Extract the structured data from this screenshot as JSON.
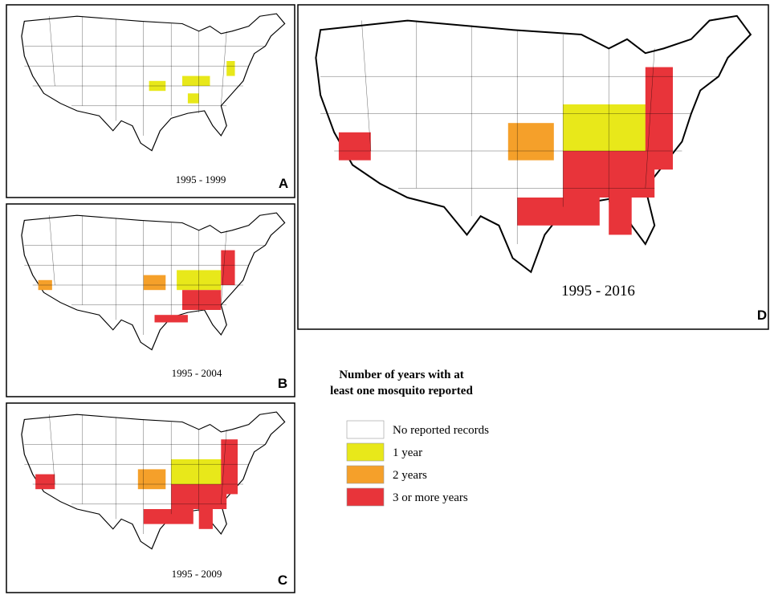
{
  "panels": [
    {
      "label": "A",
      "period": "1995 - 1999"
    },
    {
      "label": "B",
      "period": "1995 - 2004"
    },
    {
      "label": "C",
      "period": "1995 - 2009"
    },
    {
      "label": "D",
      "period": "1995 - 2016"
    }
  ],
  "legend": {
    "title": [
      "Number of years with at",
      "least one mosquito reported"
    ],
    "items": [
      {
        "label": "No reported records",
        "color": "#ffffff"
      },
      {
        "label": "1 year",
        "color": "#e8e81a"
      },
      {
        "label": "2 years",
        "color": "#f5a02a"
      },
      {
        "label": "3 or more years",
        "color": "#e8343a"
      }
    ]
  }
}
